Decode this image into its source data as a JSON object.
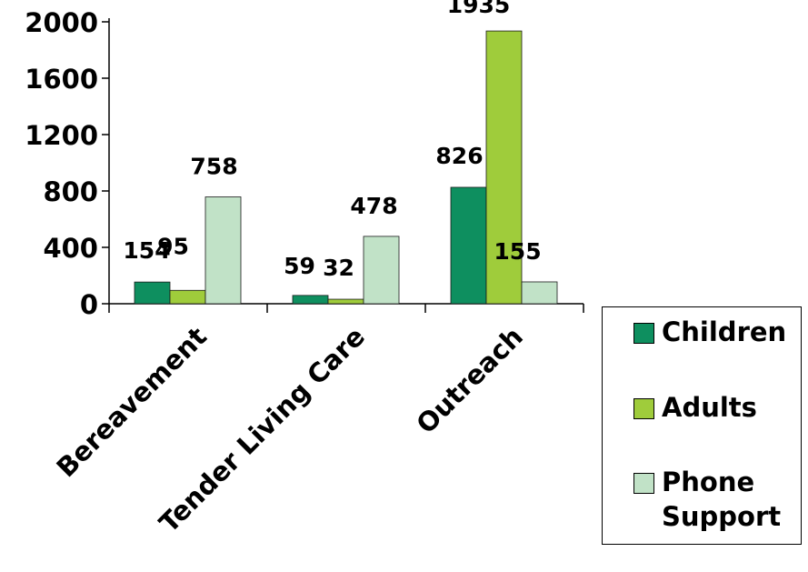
{
  "chart_data": {
    "type": "bar",
    "title": "",
    "xlabel": "",
    "ylabel": "",
    "categories": [
      "Bereavement",
      "Tender Living Care",
      "Outreach"
    ],
    "series": [
      {
        "name": "Children",
        "values": [
          154,
          59,
          826
        ],
        "color": "#0e8f5f"
      },
      {
        "name": "Adults",
        "values": [
          95,
          32,
          1935
        ],
        "color": "#9fcc3b"
      },
      {
        "name": "Phone Support",
        "values": [
          758,
          478,
          155
        ],
        "color": "#c1e2c7"
      }
    ],
    "ylim": [
      0,
      2000
    ],
    "yticks": [
      0,
      400,
      800,
      1200,
      1600,
      2000
    ],
    "grid": false,
    "legend_position": "right"
  }
}
